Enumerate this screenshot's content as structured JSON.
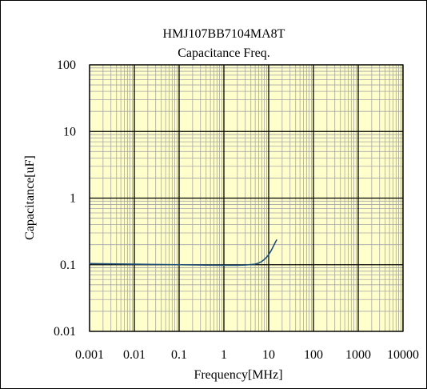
{
  "chart_data": {
    "type": "line",
    "title": "HMJ107BB7104MA8T",
    "subtitle": "Capacitance Freq.",
    "xlabel": "Frequency[MHz]",
    "ylabel": "Capacitance[uF]",
    "x_scale": "log",
    "y_scale": "log",
    "xlim": [
      0.001,
      10000
    ],
    "ylim": [
      0.01,
      100
    ],
    "x_ticks": [
      "0.001",
      "0.01",
      "0.1",
      "1",
      "10",
      "100",
      "1000",
      "10000"
    ],
    "y_ticks": [
      "0.01",
      "0.1",
      "1",
      "10",
      "100"
    ],
    "grid": true,
    "plot_background": "#ffffcc",
    "major_grid_color": "#000000",
    "minor_grid_color": "#a6a6a6",
    "series_color": "#1f4e79",
    "series": [
      {
        "x": [
          0.001,
          0.003,
          0.01,
          0.03,
          0.1,
          0.3,
          1,
          2,
          3,
          5,
          6,
          7,
          8,
          9,
          10,
          11,
          12,
          13,
          14,
          15
        ],
        "y": [
          0.104,
          0.103,
          0.102,
          0.101,
          0.1,
          0.099,
          0.098,
          0.098,
          0.099,
          0.102,
          0.106,
          0.112,
          0.12,
          0.13,
          0.142,
          0.157,
          0.175,
          0.195,
          0.215,
          0.235
        ]
      }
    ]
  }
}
